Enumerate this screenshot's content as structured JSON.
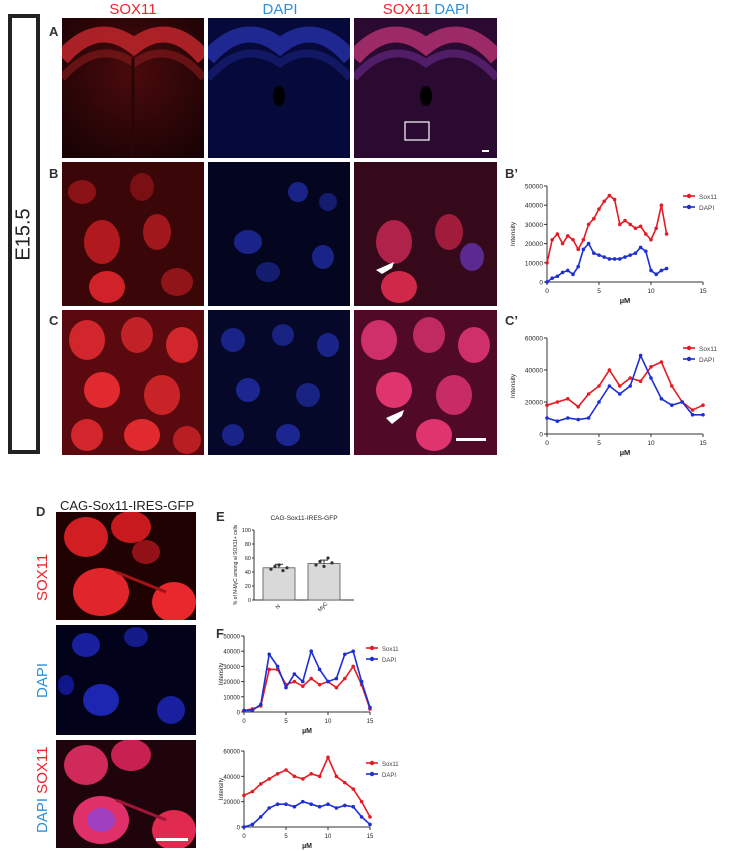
{
  "figure": {
    "stage_label": "E15.5",
    "headers": {
      "col1": "SOX11",
      "col2": "DAPI",
      "col3_red": "SOX11",
      "col3_blue": "DAPI"
    },
    "panel_letters": {
      "A": "A",
      "B": "B",
      "C": "C",
      "Bp": "B’",
      "Cp": "C’",
      "D": "D",
      "E": "E",
      "F": "F"
    },
    "d_title": "CAG-Sox11-IRES-GFP",
    "d_side_labels": {
      "sox11": "SOX11",
      "dapi": "DAPI",
      "merge_red": "SOX11",
      "merge_blue": "DAPI"
    },
    "colors": {
      "sox11": "#e8262e",
      "dapi": "#2f8fd6",
      "series_red": "#e31b23",
      "series_blue": "#1d2fd1"
    }
  },
  "chart_data": [
    {
      "id": "Bp",
      "type": "line",
      "title": "",
      "xlabel": "µM",
      "ylabel": "Intensity",
      "xlim": [
        0,
        15
      ],
      "ylim": [
        0,
        50000
      ],
      "xticks": [
        "0",
        "5",
        "10",
        "15"
      ],
      "yticks": [
        "0",
        "10000",
        "20000",
        "30000",
        "40000",
        "50000"
      ],
      "legend_position": "right",
      "series": [
        {
          "name": "Sox11",
          "color": "#e31b23",
          "x": [
            0,
            0.5,
            1,
            1.5,
            2,
            2.5,
            3,
            3.5,
            4,
            4.5,
            5,
            5.5,
            6,
            6.5,
            7,
            7.5,
            8,
            8.5,
            9,
            9.5,
            10,
            10.5,
            11,
            11.5
          ],
          "values": [
            10000,
            22000,
            25000,
            20000,
            24000,
            22000,
            17000,
            22000,
            30000,
            33000,
            38000,
            42000,
            45000,
            43000,
            30000,
            32000,
            30000,
            28000,
            29000,
            25000,
            22000,
            28000,
            40000,
            25000
          ]
        },
        {
          "name": "DAPI",
          "color": "#1d2fd1",
          "x": [
            0,
            0.5,
            1,
            1.5,
            2,
            2.5,
            3,
            3.5,
            4,
            4.5,
            5,
            5.5,
            6,
            6.5,
            7,
            7.5,
            8,
            8.5,
            9,
            9.5,
            10,
            10.5,
            11,
            11.5
          ],
          "values": [
            0,
            2000,
            3000,
            5000,
            6000,
            4000,
            8000,
            17000,
            20000,
            15000,
            14000,
            13000,
            12000,
            12000,
            12000,
            13000,
            14000,
            15000,
            18000,
            16000,
            6000,
            4000,
            6000,
            7000
          ]
        }
      ]
    },
    {
      "id": "Cp",
      "type": "line",
      "title": "",
      "xlabel": "µM",
      "ylabel": "Intensity",
      "xlim": [
        0,
        15
      ],
      "ylim": [
        0,
        60000
      ],
      "xticks": [
        "0",
        "5",
        "10",
        "15"
      ],
      "yticks": [
        "0",
        "20000",
        "40000",
        "60000"
      ],
      "legend_position": "right",
      "series": [
        {
          "name": "Sox11",
          "color": "#e31b23",
          "x": [
            0,
            1,
            2,
            3,
            4,
            5,
            6,
            7,
            8,
            9,
            10,
            11,
            12,
            13,
            14,
            15
          ],
          "values": [
            18000,
            20000,
            22000,
            17000,
            25000,
            30000,
            40000,
            30000,
            35000,
            33000,
            42000,
            45000,
            30000,
            20000,
            15000,
            18000
          ]
        },
        {
          "name": "DAPI",
          "color": "#1d2fd1",
          "x": [
            0,
            1,
            2,
            3,
            4,
            5,
            6,
            7,
            8,
            9,
            10,
            11,
            12,
            13,
            14,
            15
          ],
          "values": [
            10000,
            8000,
            10000,
            9000,
            10000,
            20000,
            30000,
            25000,
            30000,
            49000,
            35000,
            22000,
            18000,
            20000,
            12000,
            12000
          ]
        }
      ]
    },
    {
      "id": "E",
      "type": "bar",
      "title": "CAG-Sox11-IRES-GFP",
      "xlabel": "",
      "ylabel": "% of N-MyC among al SOX11+ cells",
      "categories": [
        "N",
        "MyC"
      ],
      "values": [
        46,
        52
      ],
      "ylim": [
        0,
        100
      ],
      "yticks": [
        "0",
        "20",
        "40",
        "60",
        "80",
        "100"
      ],
      "points": [
        [
          44,
          48,
          50,
          42,
          46
        ],
        [
          50,
          55,
          48,
          60,
          53
        ]
      ]
    },
    {
      "id": "F1",
      "type": "line",
      "title": "",
      "xlabel": "µM",
      "ylabel": "Intensity",
      "xlim": [
        0,
        15
      ],
      "ylim": [
        0,
        50000
      ],
      "xticks": [
        "0",
        "5",
        "10",
        "15"
      ],
      "yticks": [
        "0",
        "10000",
        "20000",
        "30000",
        "40000",
        "50000"
      ],
      "legend_position": "right",
      "series": [
        {
          "name": "Sox11",
          "color": "#e31b23",
          "x": [
            0,
            1,
            2,
            3,
            4,
            5,
            6,
            7,
            8,
            9,
            10,
            11,
            12,
            13,
            14,
            15
          ],
          "values": [
            1000,
            2000,
            4000,
            28000,
            28000,
            18000,
            20000,
            17000,
            22000,
            18000,
            20000,
            16000,
            22000,
            30000,
            18000,
            2000
          ]
        },
        {
          "name": "DAPI",
          "color": "#1d2fd1",
          "x": [
            0,
            1,
            2,
            3,
            4,
            5,
            6,
            7,
            8,
            9,
            10,
            11,
            12,
            13,
            14,
            15
          ],
          "values": [
            1000,
            1000,
            5000,
            38000,
            30000,
            16000,
            25000,
            20000,
            40000,
            28000,
            20000,
            22000,
            38000,
            40000,
            20000,
            3000
          ]
        }
      ]
    },
    {
      "id": "F2",
      "type": "line",
      "title": "",
      "xlabel": "µM",
      "ylabel": "Intensity",
      "xlim": [
        0,
        15
      ],
      "ylim": [
        0,
        60000
      ],
      "xticks": [
        "0",
        "5",
        "10",
        "15"
      ],
      "yticks": [
        "0",
        "20000",
        "40000",
        "60000"
      ],
      "legend_position": "right",
      "series": [
        {
          "name": "Sox11",
          "color": "#e31b23",
          "x": [
            0,
            1,
            2,
            3,
            4,
            5,
            6,
            7,
            8,
            9,
            10,
            11,
            12,
            13,
            14,
            15
          ],
          "values": [
            25000,
            28000,
            34000,
            38000,
            42000,
            45000,
            40000,
            38000,
            42000,
            40000,
            55000,
            40000,
            35000,
            30000,
            20000,
            8000
          ]
        },
        {
          "name": "DAPI",
          "color": "#1d2fd1",
          "x": [
            0,
            1,
            2,
            3,
            4,
            5,
            6,
            7,
            8,
            9,
            10,
            11,
            12,
            13,
            14,
            15
          ],
          "values": [
            0,
            2000,
            8000,
            15000,
            18000,
            18000,
            16000,
            20000,
            18000,
            16000,
            18000,
            15000,
            17000,
            16000,
            8000,
            2000
          ]
        }
      ]
    }
  ]
}
